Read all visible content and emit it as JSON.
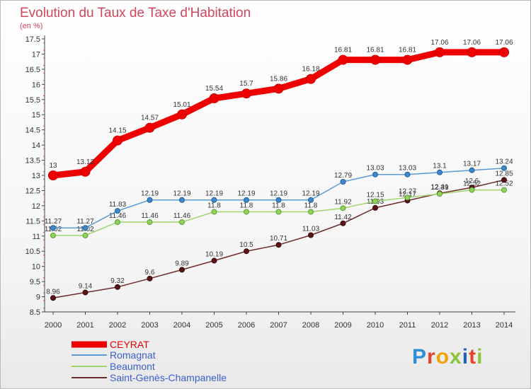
{
  "header": {
    "title": "Evolution du Taux de Taxe d'Habitation",
    "subtitle": "(en %)"
  },
  "logo": [
    "P",
    "r",
    "o",
    "x",
    "i",
    "t",
    "i"
  ],
  "chart_data": {
    "type": "line",
    "title": "Evolution du Taux de Taxe d'Habitation",
    "ylabel": "(en %)",
    "xlabel": "",
    "x": [
      "2000",
      "2001",
      "2002",
      "2003",
      "2004",
      "2005",
      "2006",
      "2007",
      "2008",
      "2009",
      "2010",
      "2011",
      "2012",
      "2013",
      "2014"
    ],
    "ylim": [
      8.5,
      17.5
    ],
    "yticks": [
      "8.5",
      "9",
      "9.5",
      "10",
      "10.5",
      "11",
      "11.5",
      "12",
      "12.5",
      "13",
      "13.5",
      "14",
      "14.5",
      "15",
      "15.5",
      "16",
      "16.5",
      "17",
      "17.5"
    ],
    "grid": false,
    "legend_position": "bottom-left",
    "series": [
      {
        "name": "CEYRAT",
        "color": "#ee0000",
        "values": [
          13,
          13.12,
          14.15,
          14.57,
          15.01,
          15.54,
          15.7,
          15.86,
          16.18,
          16.81,
          16.81,
          16.81,
          17.06,
          17.06,
          17.06
        ],
        "labels": [
          "13",
          "13.12",
          "14.15",
          "14.57",
          "15.01",
          "15.54",
          "15.7",
          "15.86",
          "16.18",
          "16.81",
          "16.81",
          "16.81",
          "17.06",
          "17.06",
          "17.06"
        ]
      },
      {
        "name": "Romagnat",
        "color": "#5b9bd5",
        "values": [
          11.27,
          11.27,
          11.83,
          12.19,
          12.19,
          12.19,
          12.19,
          12.19,
          12.19,
          12.79,
          13.03,
          13.03,
          13.1,
          13.17,
          13.24
        ],
        "labels": [
          "11.27",
          "11.27",
          "11.83",
          "12.19",
          "12.19",
          "12.19",
          "12.19",
          "12.19",
          "12.19",
          "12.79",
          "13.03",
          "13.03",
          "13.1",
          "13.17",
          "13.24"
        ]
      },
      {
        "name": "Beaumont",
        "color": "#9dd56a",
        "values": [
          11.02,
          11.02,
          11.46,
          11.46,
          11.46,
          11.8,
          11.8,
          11.8,
          11.8,
          11.92,
          12.15,
          12.27,
          12.39,
          12.52,
          12.52
        ],
        "labels": [
          "11.02",
          "11.02",
          "11.46",
          "11.46",
          "11.46",
          "11.8",
          "11.8",
          "11.8",
          "11.8",
          "11.92",
          "12.15",
          "12.27",
          "12.39",
          "12.52",
          "12.52"
        ]
      },
      {
        "name": "Saint-Genès-Champanelle",
        "color": "#6e2a2a",
        "values": [
          8.96,
          9.14,
          9.32,
          9.6,
          9.89,
          10.19,
          10.5,
          10.71,
          11.03,
          11.42,
          11.93,
          12.17,
          12.41,
          12.6,
          12.85
        ],
        "labels": [
          "8.96",
          "9.14",
          "9.32",
          "9.6",
          "9.89",
          "10.19",
          "10.5",
          "10.71",
          "11.03",
          "11.42",
          "11.93",
          "12.17",
          "12.41",
          "12.6",
          "12.85"
        ]
      }
    ]
  }
}
